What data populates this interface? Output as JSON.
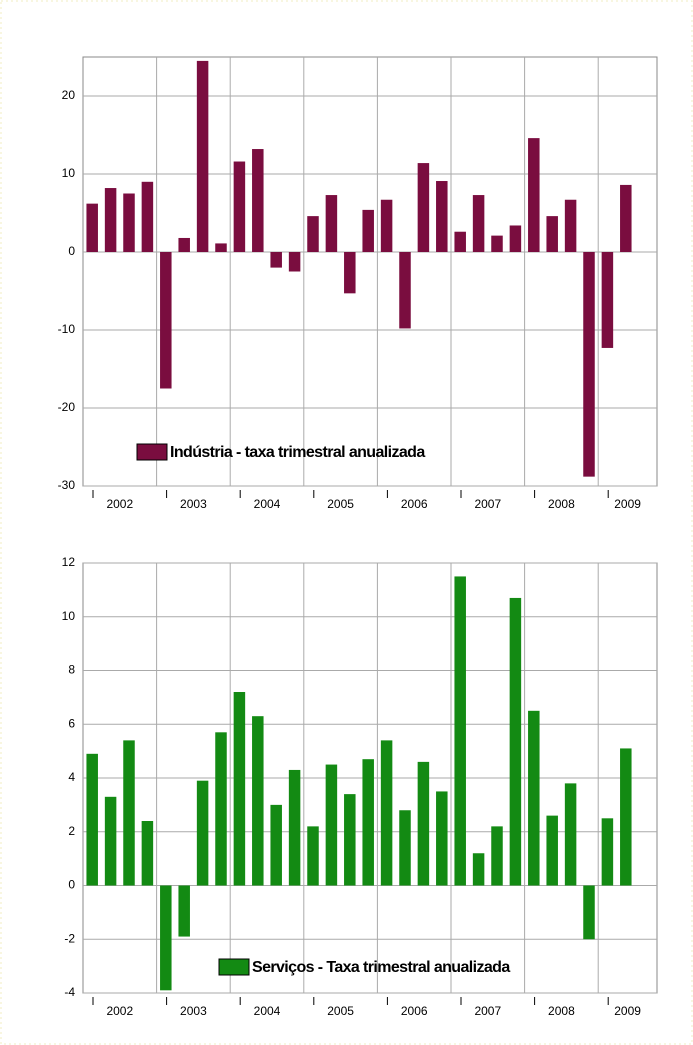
{
  "chart_data": [
    {
      "type": "bar",
      "categories": [
        null,
        null,
        null,
        null,
        null,
        null,
        null,
        null,
        null,
        null,
        null,
        null,
        null,
        null,
        null,
        null,
        null,
        null,
        null,
        null,
        null,
        null,
        null,
        null,
        null,
        null,
        null,
        null,
        null,
        null
      ],
      "year_labels": [
        "2002",
        "2003",
        "2004",
        "2005",
        "2006",
        "2007",
        "2008",
        "2009"
      ],
      "series": [
        {
          "name": "Indústria - taxa trimestral anualizada",
          "color": "#7a0d3f",
          "values": [
            6.2,
            8.2,
            7.5,
            9.0,
            -17.5,
            1.8,
            24.5,
            1.1,
            11.6,
            13.2,
            -2.0,
            -2.5,
            4.6,
            7.3,
            -5.3,
            5.4,
            6.7,
            -9.8,
            11.4,
            9.1,
            2.6,
            7.3,
            2.1,
            3.4,
            14.6,
            4.6,
            6.7,
            -28.8,
            -12.3,
            8.6
          ]
        }
      ],
      "ylim": [
        -30,
        25
      ],
      "yticks": [
        -30,
        -20,
        -10,
        0,
        10,
        20
      ],
      "grid": true,
      "legend": "bottom-left"
    },
    {
      "type": "bar",
      "categories": [
        null,
        null,
        null,
        null,
        null,
        null,
        null,
        null,
        null,
        null,
        null,
        null,
        null,
        null,
        null,
        null,
        null,
        null,
        null,
        null,
        null,
        null,
        null,
        null,
        null,
        null,
        null,
        null,
        null,
        null
      ],
      "year_labels": [
        "2002",
        "2003",
        "2004",
        "2005",
        "2006",
        "2007",
        "2008",
        "2009"
      ],
      "series": [
        {
          "name": "Serviços - Taxa trimestral anualizada",
          "color": "#138a13",
          "values": [
            4.9,
            3.3,
            5.4,
            2.4,
            -3.9,
            -1.9,
            3.9,
            5.7,
            7.2,
            6.3,
            3.0,
            4.3,
            2.2,
            4.5,
            3.4,
            4.7,
            5.4,
            2.8,
            4.6,
            3.5,
            11.5,
            1.2,
            2.2,
            10.7,
            6.5,
            2.6,
            3.8,
            -2.0,
            2.5,
            5.1
          ]
        }
      ],
      "ylim": [
        -4,
        12
      ],
      "yticks": [
        -4,
        -2,
        0,
        2,
        4,
        6,
        8,
        10,
        12
      ],
      "grid": true,
      "legend": "bottom-center"
    }
  ]
}
